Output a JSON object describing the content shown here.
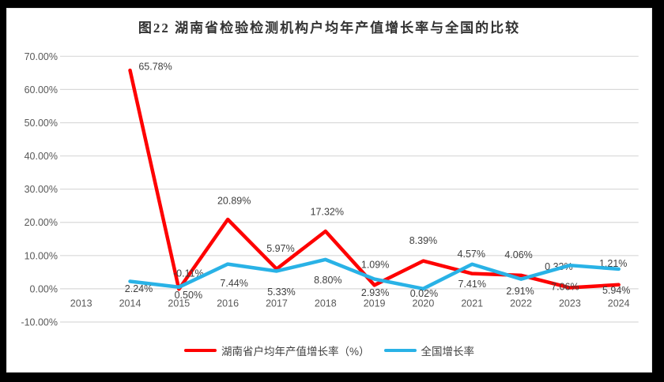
{
  "window": {
    "background_color": "#000000",
    "panel_color": "#ffffff"
  },
  "chart_data": {
    "type": "line",
    "title": "图22 湖南省检验检测机构户均年产值增长率与全国的比较",
    "categories": [
      "2013",
      "2014",
      "2015",
      "2016",
      "2017",
      "2018",
      "2019",
      "2020",
      "2021",
      "2022",
      "2023",
      "2024"
    ],
    "series": [
      {
        "name": "湖南省户均年产值增长率（%）",
        "color": "#fe0000",
        "values": [
          null,
          65.78,
          -0.11,
          20.89,
          5.97,
          17.32,
          1.09,
          8.39,
          4.57,
          4.06,
          0.33,
          1.21
        ],
        "point_labels": [
          "",
          "65.78%",
          "-0.11%",
          "20.89%",
          "5.97%",
          "17.32%",
          "1.09%",
          "8.39%",
          "4.57%",
          "4.06%",
          "0.33%",
          "1.21%"
        ]
      },
      {
        "name": "全国增长率",
        "color": "#29b2e6",
        "values": [
          null,
          2.24,
          0.5,
          7.44,
          5.33,
          8.8,
          2.93,
          0.02,
          7.41,
          2.91,
          7.06,
          5.94
        ],
        "point_labels": [
          "",
          "2.24%",
          "0.50%",
          "7.44%",
          "5.33%",
          "8.80%",
          "2.93%",
          "0.02%",
          "7.41%",
          "2.91%",
          "7.06%",
          "5.94%"
        ]
      }
    ],
    "y_axis": {
      "min": -10,
      "max": 70,
      "step": 10,
      "tick_labels": [
        "70.00%",
        "60.00%",
        "50.00%",
        "40.00%",
        "30.00%",
        "20.00%",
        "10.00%",
        "0.00%",
        "-10.00%"
      ]
    },
    "grid": true,
    "legend_position": "bottom",
    "colors": {
      "gridline": "#d9d9d9",
      "axis_text": "#595959",
      "data_label_text": "#3f3f3f",
      "title_text": "#333333"
    }
  }
}
